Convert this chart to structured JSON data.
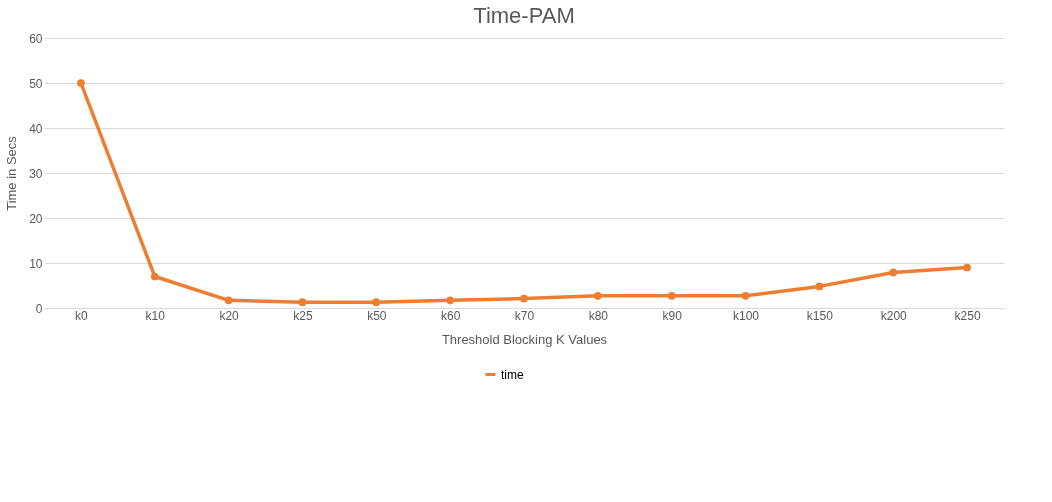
{
  "chart_data": {
    "type": "line",
    "title": "Time-PAM",
    "xlabel": "Threshold Blocking K Values",
    "ylabel": "Time in Secs",
    "categories": [
      "k0",
      "k10",
      "k20",
      "k25",
      "k50",
      "k60",
      "k70",
      "k80",
      "k90",
      "k100",
      "k150",
      "k200",
      "k250"
    ],
    "series": [
      {
        "name": "time",
        "color": "#ed7d31",
        "values": [
          50,
          7,
          1.7,
          1.3,
          1.3,
          1.7,
          2.1,
          2.7,
          2.7,
          2.7,
          4.8,
          7.9,
          9.0
        ]
      }
    ],
    "ylim": [
      0,
      60
    ],
    "yticks": [
      0,
      10,
      20,
      30,
      40,
      50,
      60
    ],
    "grid": "y",
    "legend": "bottom",
    "marker": "circle",
    "line_style": "solid"
  }
}
